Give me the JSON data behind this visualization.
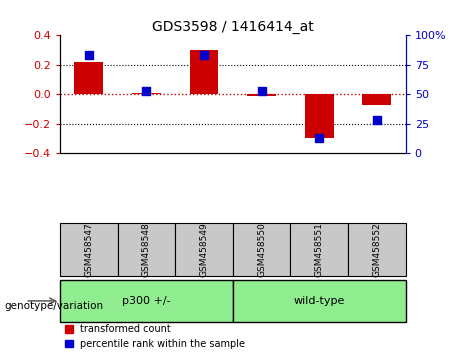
{
  "title": "GDS3598 / 1416414_at",
  "samples": [
    "GSM458547",
    "GSM458548",
    "GSM458549",
    "GSM458550",
    "GSM458551",
    "GSM458552"
  ],
  "red_values": [
    0.22,
    0.01,
    0.3,
    -0.01,
    -0.3,
    -0.07
  ],
  "blue_values_pct": [
    83,
    53,
    83,
    53,
    13,
    28
  ],
  "ylim_left": [
    -0.4,
    0.4
  ],
  "ylim_right": [
    0,
    100
  ],
  "yticks_left": [
    -0.4,
    -0.2,
    0.0,
    0.2,
    0.4
  ],
  "yticks_right": [
    0,
    25,
    50,
    75,
    100
  ],
  "group_bg_color": "#90EE90",
  "sample_box_color": "#C8C8C8",
  "red_color": "#CC0000",
  "blue_color": "#0000CC",
  "bar_width": 0.5,
  "zero_line_color": "#CC0000",
  "legend_red_label": "transformed count",
  "legend_blue_label": "percentile rank within the sample",
  "genotype_label": "genotype/variation",
  "group1_label": "p300 +/-",
  "group2_label": "wild-type"
}
